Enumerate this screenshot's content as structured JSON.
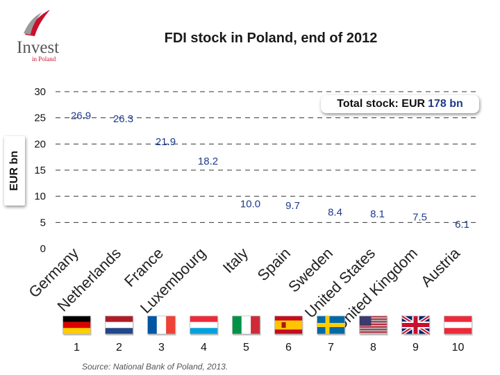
{
  "brand": {
    "name": "Invest",
    "sub": "in Poland"
  },
  "title": "FDI stock in Poland, end of 2012",
  "total": {
    "label": "Total stock: EUR",
    "value": "178 bn"
  },
  "source": "Source: National Bank of Poland, 2013.",
  "colors": {
    "bar": "#1f3a8a",
    "brand_red": "#c8102e",
    "grid": "#333333"
  },
  "chart_data": {
    "type": "bar",
    "ylabel": "EUR bn",
    "ylim": [
      0,
      30
    ],
    "yticks": [
      0,
      5,
      10,
      15,
      20,
      25,
      30
    ],
    "grid": "dashed horizontal",
    "categories": [
      "Germany",
      "Netherlands",
      "France",
      "Luxembourg",
      "Italy",
      "Spain",
      "Sweden",
      "United States",
      "United Kingdom",
      "Austria"
    ],
    "values": [
      26.9,
      26.3,
      21.9,
      18.2,
      10.0,
      9.7,
      8.4,
      8.1,
      7.5,
      6.1
    ],
    "value_labels": [
      "26.9",
      "26.3",
      "21.9",
      "18.2",
      "10.0",
      "9.7",
      "8.4",
      "8.1",
      "7.5",
      "6.1"
    ],
    "ranks": [
      "1",
      "2",
      "3",
      "4",
      "5",
      "6",
      "7",
      "8",
      "9",
      "10"
    ],
    "flags": [
      "flag-germany",
      "flag-netherlands",
      "flag-france",
      "flag-luxembourg",
      "flag-italy",
      "flag-spain",
      "flag-sweden",
      "flag-united-states",
      "flag-united-kingdom",
      "flag-austria"
    ]
  }
}
